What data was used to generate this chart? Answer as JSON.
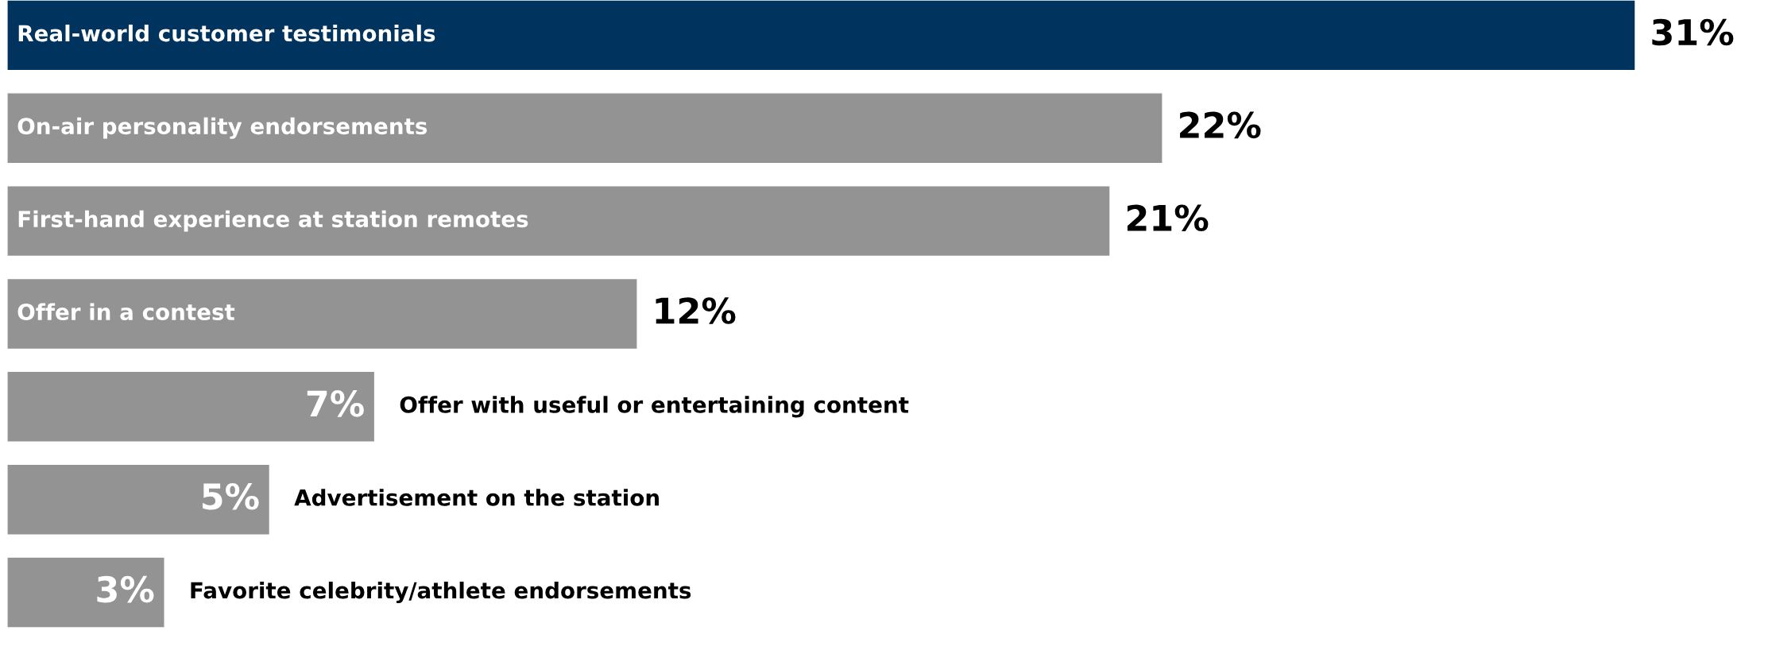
{
  "chart_data": {
    "type": "bar",
    "orientation": "horizontal",
    "categories": [
      "Real-world customer testimonials",
      "On-air personality endorsements",
      "First-hand experience at station remotes",
      "Offer in a contest",
      "Offer with useful or entertaining content",
      "Advertisement on the station",
      "Favorite celebrity/athlete endorsements"
    ],
    "values": [
      31,
      22,
      21,
      12,
      7,
      5,
      3
    ],
    "colors": [
      "#00345f",
      "#939393",
      "#939393",
      "#939393",
      "#939393",
      "#939393",
      "#939393"
    ],
    "value_labels": [
      "31%",
      "22%",
      "21%",
      "12%",
      "7%",
      "5%",
      "3%"
    ],
    "legend": false
  }
}
